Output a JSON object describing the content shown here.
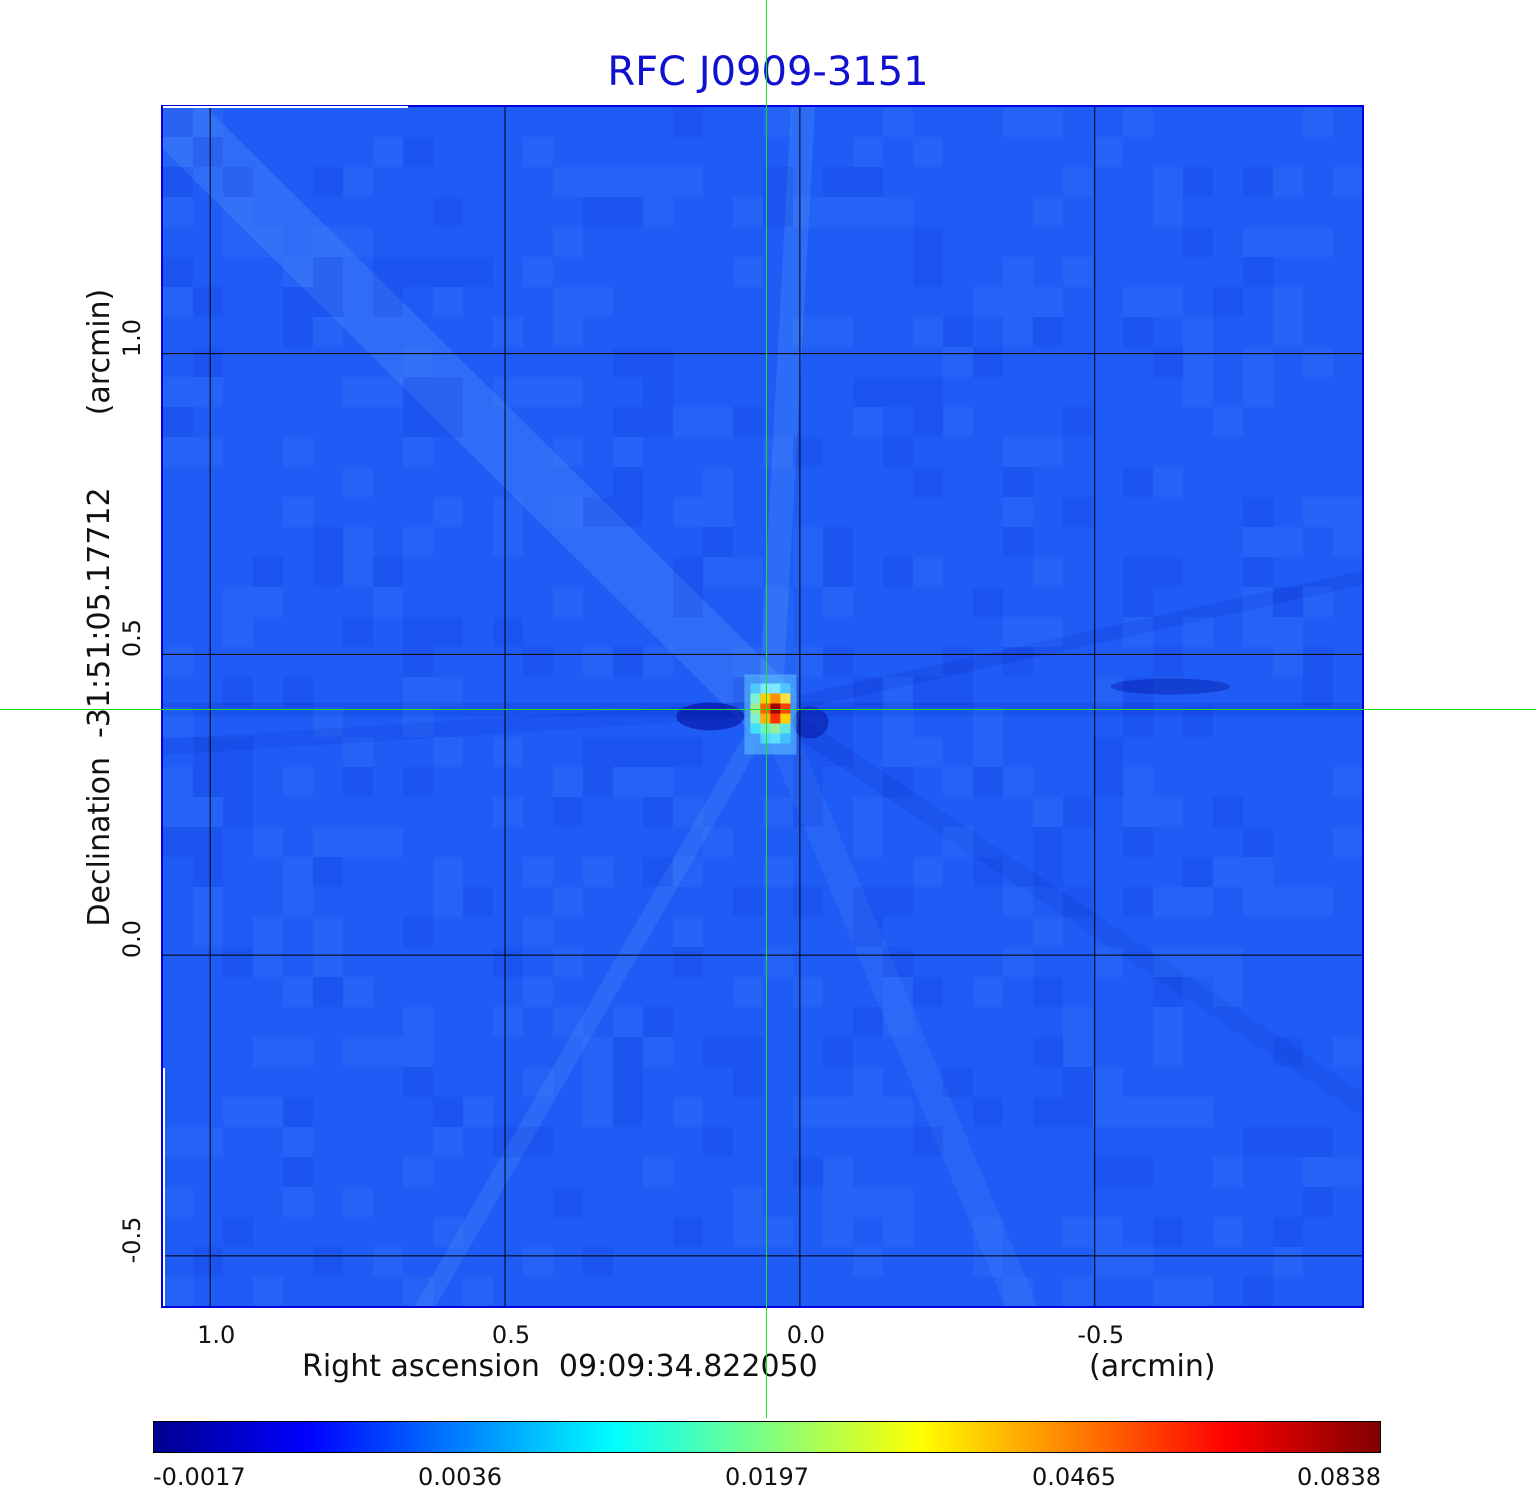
{
  "chart_data": {
    "type": "heatmap",
    "title": "RFC J0909-3151",
    "xlabel": "Right ascension  09:09:34.822050",
    "xunit": "(arcmin)",
    "ylabel": "Declination  -31:51:05.17712",
    "yunit": "(arcmin)",
    "xlim": [
      1.08,
      -0.96
    ],
    "ylim": [
      -0.59,
      1.41
    ],
    "xticks": [
      1.0,
      0.5,
      0.0,
      -0.5
    ],
    "xtick_labels": [
      "1.0",
      "0.5",
      "0.0",
      "-0.5"
    ],
    "yticks": [
      1.0,
      0.5,
      0.0,
      -0.5
    ],
    "ytick_labels": [
      "1.0",
      "0.5",
      "0.0",
      "-0.5"
    ],
    "grid": true,
    "source": {
      "x": 0.05,
      "y": 0.41,
      "peak": 0.0838
    },
    "crosshair": {
      "x": 0.055,
      "y": 0.41
    },
    "colorbar": {
      "min": -0.0017,
      "max": 0.0838,
      "tick_labels": [
        "-0.0017",
        "0.0036",
        "0.0197",
        "0.0465",
        "0.0838"
      ],
      "colormap": "jet"
    }
  },
  "colors": {
    "title": "#1010d0",
    "background_field": "#1f5cf5",
    "grid": "#000000",
    "crosshair": "#22dd22",
    "frame": "#0000dd"
  }
}
